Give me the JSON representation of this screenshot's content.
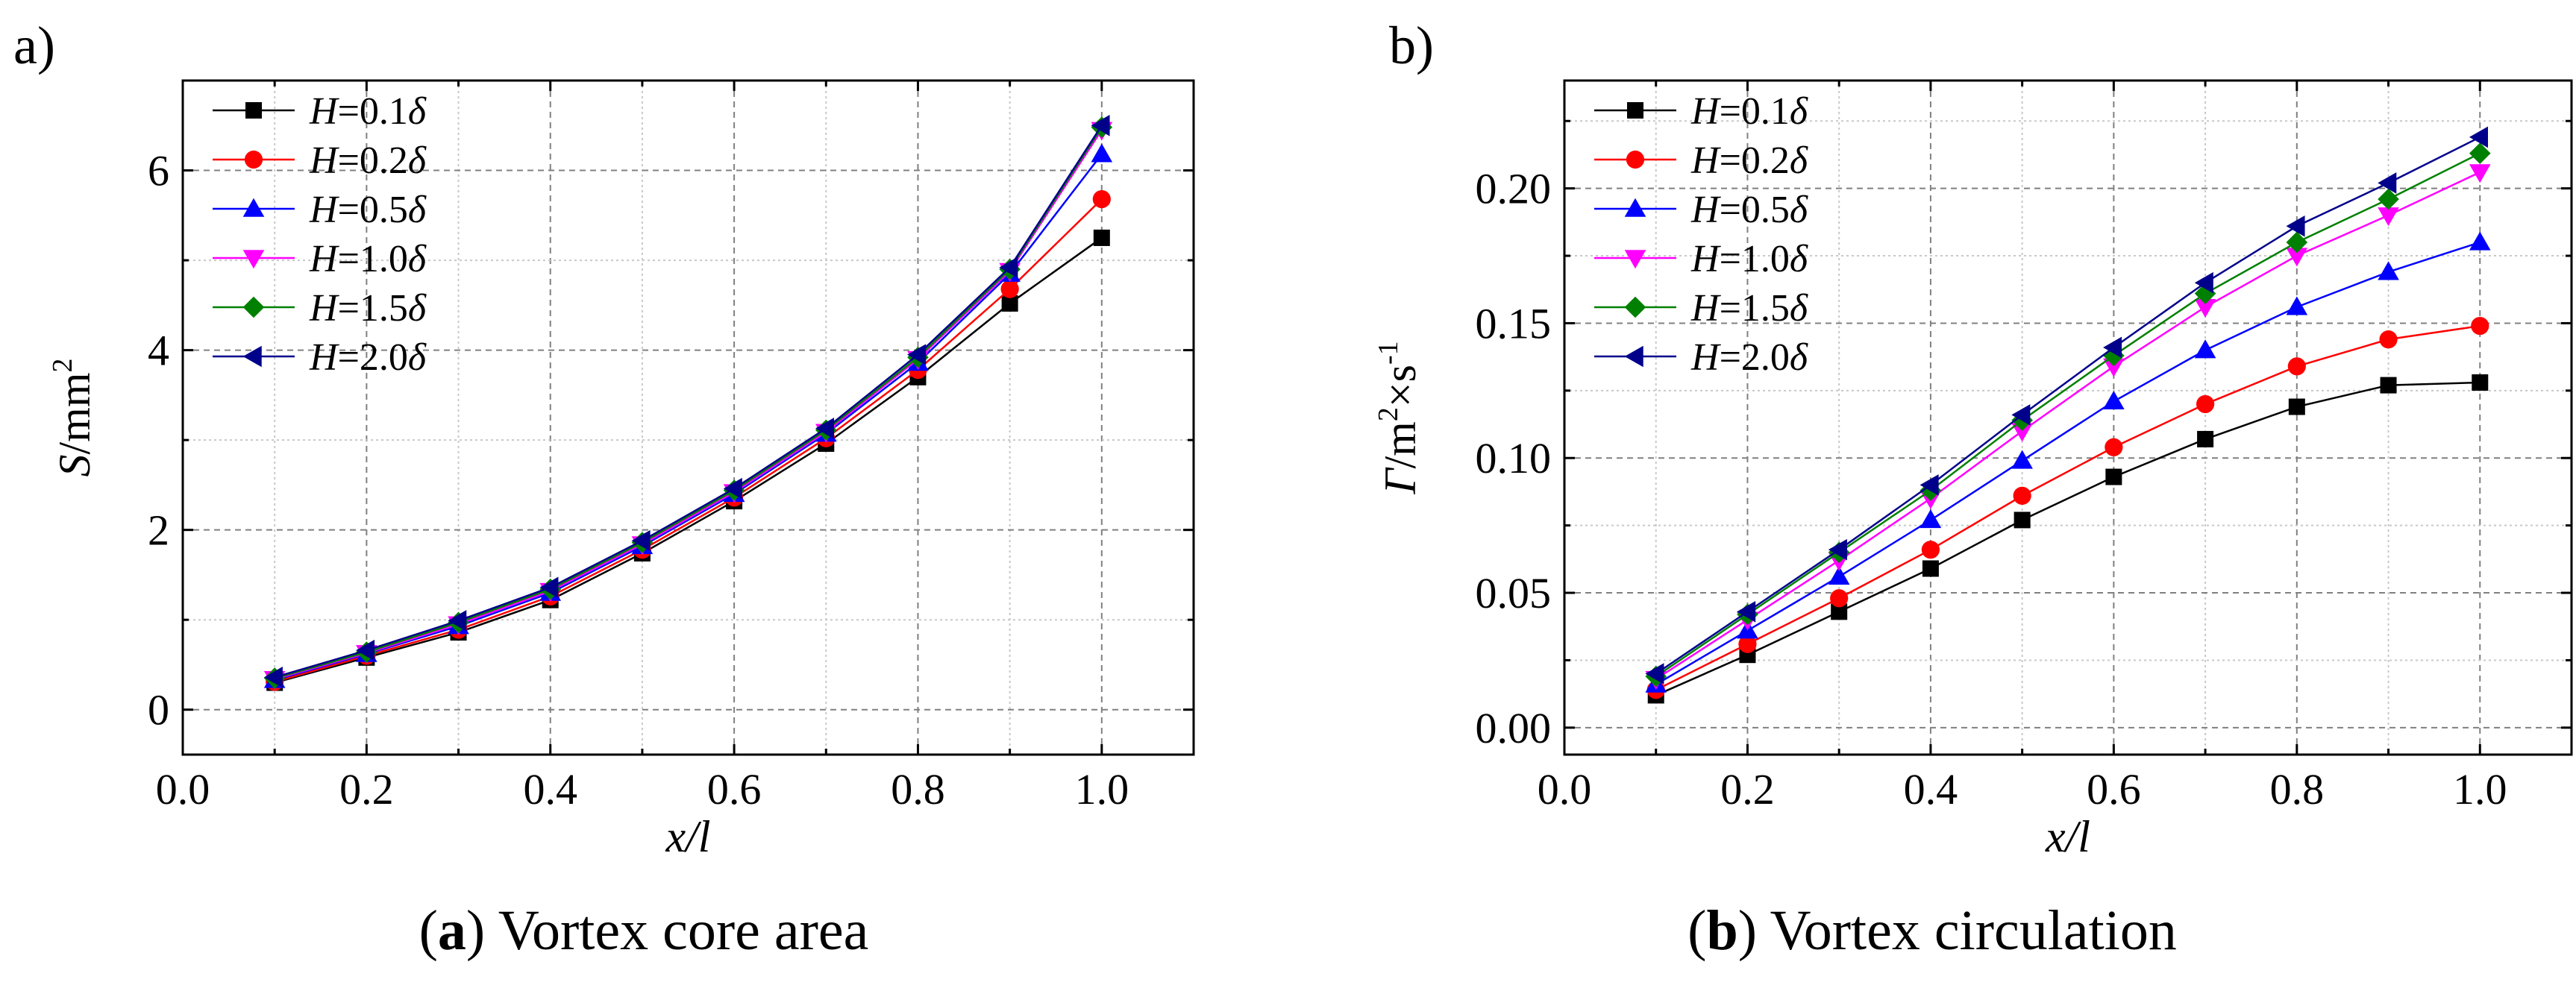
{
  "panels": [
    {
      "letter": "a)",
      "caption": {
        "tag": "a",
        "text": " Vortex core area"
      },
      "chart_data": {
        "type": "line",
        "title": "",
        "xlabel": "x/l",
        "ylabel": "S/mm²",
        "xlim": [
          0.0,
          1.1
        ],
        "ylim": [
          -0.5,
          7.0
        ],
        "xticks": [
          0.0,
          0.2,
          0.4,
          0.6,
          0.8,
          1.0
        ],
        "xtick_labels": [
          "0.0",
          "0.2",
          "0.4",
          "0.6",
          "0.8",
          "1.0"
        ],
        "yticks": [
          0,
          2,
          4,
          6
        ],
        "ytick_labels": [
          "0",
          "2",
          "4",
          "6"
        ],
        "grid": true,
        "legend_position": "top-left",
        "x": [
          0.1,
          0.2,
          0.3,
          0.4,
          0.5,
          0.6,
          0.7,
          0.8,
          0.9,
          1.0
        ],
        "series": [
          {
            "name": "H=0.1δ",
            "label_var": "H",
            "label_rest": "=0.1",
            "label_greek": "δ",
            "color": "#000000",
            "marker": "square",
            "values": [
              0.3,
              0.58,
              0.86,
              1.22,
              1.74,
              2.32,
              2.96,
              3.7,
              4.52,
              5.25
            ]
          },
          {
            "name": "H=0.2δ",
            "label_var": "H",
            "label_rest": "=0.2",
            "label_greek": "δ",
            "color": "#ff0000",
            "marker": "circle",
            "values": [
              0.31,
              0.6,
              0.89,
              1.26,
              1.78,
              2.36,
              3.02,
              3.78,
              4.68,
              5.68
            ]
          },
          {
            "name": "H=0.5δ",
            "label_var": "H",
            "label_rest": "=0.5",
            "label_greek": "δ",
            "color": "#0000ff",
            "marker": "triangle-up",
            "values": [
              0.33,
              0.62,
              0.93,
              1.3,
              1.82,
              2.4,
              3.07,
              3.86,
              4.85,
              6.18
            ]
          },
          {
            "name": "H=1.0δ",
            "label_var": "H",
            "label_rest": "=1.0",
            "label_greek": "δ",
            "color": "#ff00ff",
            "marker": "triangle-down",
            "values": [
              0.34,
              0.63,
              0.95,
              1.32,
              1.84,
              2.42,
              3.09,
              3.9,
              4.88,
              6.45
            ]
          },
          {
            "name": "H=1.5δ",
            "label_var": "H",
            "label_rest": "=1.5",
            "label_greek": "δ",
            "color": "#008000",
            "marker": "diamond",
            "values": [
              0.35,
              0.64,
              0.97,
              1.34,
              1.86,
              2.44,
              3.11,
              3.92,
              4.9,
              6.48
            ]
          },
          {
            "name": "H=2.0δ",
            "label_var": "H",
            "label_rest": "=2.0",
            "label_greek": "δ",
            "color": "#00008b",
            "marker": "triangle-left",
            "values": [
              0.36,
              0.66,
              0.99,
              1.36,
              1.88,
              2.46,
              3.13,
              3.95,
              4.92,
              6.5
            ]
          }
        ]
      }
    },
    {
      "letter": "b)",
      "caption": {
        "tag": "b",
        "text": " Vortex circulation"
      },
      "chart_data": {
        "type": "line",
        "title": "",
        "xlabel": "x/l",
        "ylabel": "Γ/m²×s⁻¹",
        "xlim": [
          0.0,
          1.1
        ],
        "ylim": [
          -0.01,
          0.24
        ],
        "xticks": [
          0.0,
          0.2,
          0.4,
          0.6,
          0.8,
          1.0
        ],
        "xtick_labels": [
          "0.0",
          "0.2",
          "0.4",
          "0.6",
          "0.8",
          "1.0"
        ],
        "yticks": [
          0.0,
          0.05,
          0.1,
          0.15,
          0.2
        ],
        "ytick_labels": [
          "0.00",
          "0.05",
          "0.10",
          "0.15",
          "0.20"
        ],
        "grid": true,
        "legend_position": "top-left",
        "x": [
          0.1,
          0.2,
          0.3,
          0.4,
          0.5,
          0.6,
          0.7,
          0.8,
          0.9,
          1.0
        ],
        "series": [
          {
            "name": "H=0.1δ",
            "label_var": "H",
            "label_rest": "=0.1",
            "label_greek": "δ",
            "color": "#000000",
            "marker": "square",
            "values": [
              0.012,
              0.027,
              0.043,
              0.059,
              0.077,
              0.093,
              0.107,
              0.119,
              0.127,
              0.128
            ]
          },
          {
            "name": "H=0.2δ",
            "label_var": "H",
            "label_rest": "=0.2",
            "label_greek": "δ",
            "color": "#ff0000",
            "marker": "circle",
            "values": [
              0.014,
              0.031,
              0.048,
              0.066,
              0.086,
              0.104,
              0.12,
              0.134,
              0.144,
              0.149
            ]
          },
          {
            "name": "H=0.5δ",
            "label_var": "H",
            "label_rest": "=0.5",
            "label_greek": "δ",
            "color": "#0000ff",
            "marker": "triangle-up",
            "values": [
              0.016,
              0.036,
              0.056,
              0.077,
              0.099,
              0.121,
              0.14,
              0.156,
              0.169,
              0.18
            ]
          },
          {
            "name": "H=1.0δ",
            "label_var": "H",
            "label_rest": "=1.0",
            "label_greek": "δ",
            "color": "#ff00ff",
            "marker": "triangle-down",
            "values": [
              0.018,
              0.04,
              0.062,
              0.085,
              0.11,
              0.134,
              0.156,
              0.175,
              0.19,
              0.206
            ]
          },
          {
            "name": "H=1.5δ",
            "label_var": "H",
            "label_rest": "=1.5",
            "label_greek": "δ",
            "color": "#008000",
            "marker": "diamond",
            "values": [
              0.019,
              0.042,
              0.065,
              0.088,
              0.114,
              0.138,
              0.161,
              0.18,
              0.196,
              0.213
            ]
          },
          {
            "name": "H=2.0δ",
            "label_var": "H",
            "label_rest": "=2.0",
            "label_greek": "δ",
            "color": "#00008b",
            "marker": "triangle-left",
            "values": [
              0.02,
              0.043,
              0.066,
              0.09,
              0.116,
              0.141,
              0.165,
              0.186,
              0.202,
              0.219
            ]
          }
        ]
      }
    }
  ]
}
